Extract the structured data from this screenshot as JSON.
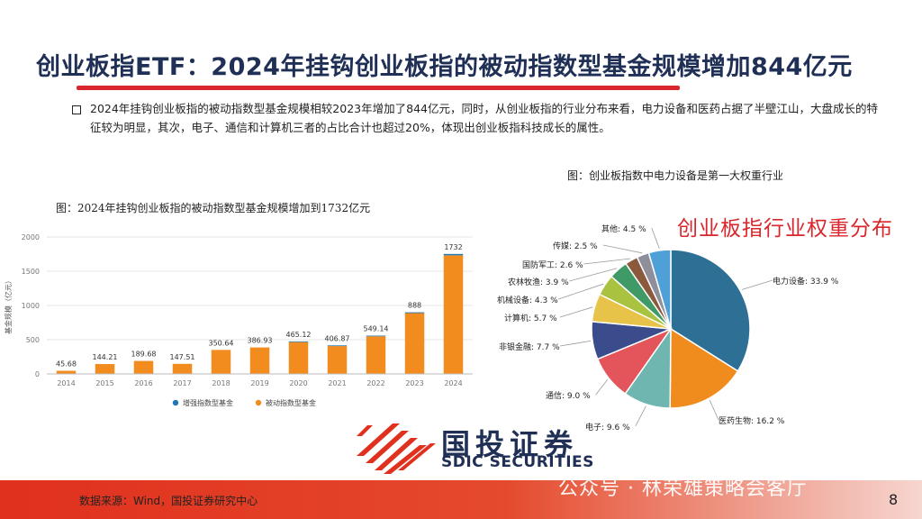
{
  "title": "创业板指ETF：2024年挂钩创业板指的被动指数型基金规模增加844亿元",
  "summary": "2024年挂钩创业板指的被动指数型基金规模相较2023年增加了844亿元，同时，从创业板指的行业分布来看，电力设备和医药占据了半壁江山，大盘成长的特征较为明显，其次，电子、通信和计算机三者的占比合计也超过20%，体现出创业板指科技成长的属性。",
  "bar_caption": "图：2024年挂钩创业板指的被动指数型基金规模增加到1732亿元",
  "pie_caption": "图：创业板指数中电力设备是第一大权重行业",
  "pie_overlay_title": "创业板指行业权重分布",
  "logo": {
    "cn": "国投证券",
    "en": "SDIC SECURITIES"
  },
  "footer": {
    "source": "数据来源：Wind，国投证券研究中心",
    "watermark": "公众号 · 林荣雄策略会客厅",
    "page": "8"
  },
  "colors": {
    "accent_red": "#d9262c",
    "navy": "#1f2f55",
    "bar_orange": "#f28c1e",
    "bar_blue": "#1f78b4"
  },
  "chart_data": [
    {
      "type": "bar",
      "title": "",
      "categories": [
        "2014",
        "2015",
        "2016",
        "2017",
        "2018",
        "2019",
        "2020",
        "2021",
        "2022",
        "2023",
        "2024"
      ],
      "series": [
        {
          "name": "增强指数型基金",
          "values": [
            0,
            0,
            0,
            0,
            0,
            0,
            10,
            10,
            10,
            12,
            20
          ],
          "color": "#1f78b4"
        },
        {
          "name": "被动指数型基金",
          "values": [
            45.68,
            144.21,
            189.68,
            147.51,
            350.64,
            386.93,
            465.12,
            406.87,
            549.14,
            888,
            1732
          ],
          "color": "#f28c1e"
        }
      ],
      "data_labels": [
        "45.68",
        "144.21",
        "189.68",
        "147.51",
        "350.64",
        "386.93",
        "465.12",
        "406.87",
        "549.14",
        "888",
        "1732"
      ],
      "ylabel": "基金规模（亿元）",
      "ylim": [
        0,
        2000
      ],
      "yticks": [
        "0",
        "500",
        "1000",
        "1500",
        "2000"
      ],
      "grid": true,
      "legend": "bottom"
    },
    {
      "type": "pie",
      "title": "",
      "slices": [
        {
          "label": "电力设备",
          "value": 33.9,
          "text": "电力设备: 33.9 %",
          "color": "#2e6f96"
        },
        {
          "label": "医药生物",
          "value": 16.2,
          "text": "医药生物: 16.2 %",
          "color": "#f08c1e"
        },
        {
          "label": "电子",
          "value": 9.6,
          "text": "电子: 9.6 %",
          "color": "#6fb5b0"
        },
        {
          "label": "通信",
          "value": 9.0,
          "text": "通信: 9.0 %",
          "color": "#e3555a"
        },
        {
          "label": "非银金融",
          "value": 7.7,
          "text": "非银金融: 7.7 %",
          "color": "#3b4c8c"
        },
        {
          "label": "计算机",
          "value": 5.7,
          "text": "计算机: 5.7 %",
          "color": "#e7c34a"
        },
        {
          "label": "机械设备",
          "value": 4.3,
          "text": "机械设备: 4.3 %",
          "color": "#a9c23f"
        },
        {
          "label": "农林牧渔",
          "value": 3.9,
          "text": "农林牧渔: 3.9 %",
          "color": "#3f9a68"
        },
        {
          "label": "国防军工",
          "value": 2.6,
          "text": "国防军工: 2.6 %",
          "color": "#8b5a3c"
        },
        {
          "label": "传媒",
          "value": 2.5,
          "text": "传媒: 2.5 %",
          "color": "#8f8f9c"
        },
        {
          "label": "其他",
          "value": 4.5,
          "text": "其他: 4.5 %",
          "color": "#4ea0d6"
        }
      ]
    }
  ]
}
